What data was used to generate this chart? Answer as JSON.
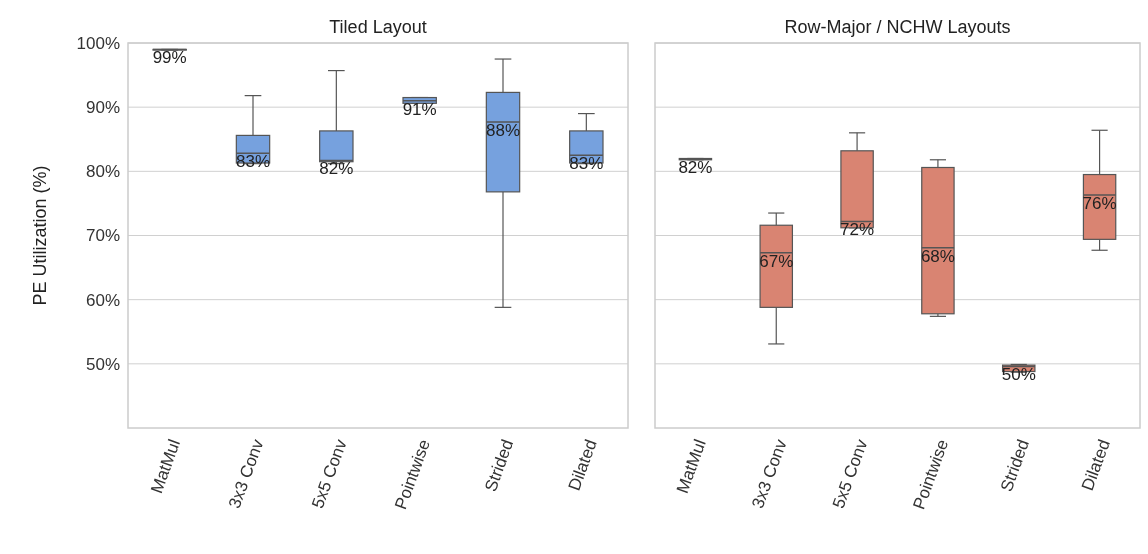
{
  "chart_data": [
    {
      "type": "box",
      "title": "Tiled Layout",
      "ylabel": "PE Utilization (%)",
      "categories": [
        "MatMul",
        "3x3 Conv",
        "5x5 Conv",
        "Pointwise",
        "Strided",
        "Dilated"
      ],
      "color": "#76a1de",
      "ylim": [
        40,
        100
      ],
      "yticks": [
        {
          "value": 50,
          "label": "50%"
        },
        {
          "value": 60,
          "label": "60%"
        },
        {
          "value": 70,
          "label": "70%"
        },
        {
          "value": 80,
          "label": "80%"
        },
        {
          "value": 90,
          "label": "90%"
        },
        {
          "value": 100,
          "label": "100%"
        }
      ],
      "grid": "y",
      "boxes": [
        {
          "low": 98.9,
          "q1": 98.9,
          "median": 99,
          "q3": 99,
          "high": 99
        },
        {
          "low": 81.2,
          "q1": 81.3,
          "median": 82.8,
          "q3": 85.6,
          "high": 91.8
        },
        {
          "low": 81.2,
          "q1": 81.5,
          "median": 81.7,
          "q3": 86.3,
          "high": 95.7
        },
        {
          "low": 90.6,
          "q1": 90.6,
          "median": 91,
          "q3": 91.5,
          "high": 91.5
        },
        {
          "low": 58.8,
          "q1": 76.8,
          "median": 87.7,
          "q3": 92.3,
          "high": 97.5
        },
        {
          "low": 81.2,
          "q1": 81.3,
          "median": 82.5,
          "q3": 86.3,
          "high": 89
        }
      ],
      "value_labels": [
        "99%",
        "83%",
        "82%",
        "91%",
        "88%",
        "83%"
      ]
    },
    {
      "type": "box",
      "title": "Row-Major / NCHW Layouts",
      "categories": [
        "MatMul",
        "3x3 Conv",
        "5x5 Conv",
        "Pointwise",
        "Strided",
        "Dilated"
      ],
      "color": "#d98472",
      "ylim": [
        40,
        100
      ],
      "yticks": [
        50,
        60,
        70,
        80,
        90,
        100
      ],
      "grid": "y",
      "tick_labels": "x",
      "boxes": [
        {
          "low": 81.8,
          "q1": 81.8,
          "median": 81.9,
          "q3": 82,
          "high": 82
        },
        {
          "low": 53.1,
          "q1": 58.8,
          "median": 67.3,
          "q3": 71.6,
          "high": 73.5
        },
        {
          "low": 71.2,
          "q1": 71.2,
          "median": 72.2,
          "q3": 83.2,
          "high": 86
        },
        {
          "low": 57.4,
          "q1": 57.8,
          "median": 68.1,
          "q3": 80.6,
          "high": 81.8
        },
        {
          "low": 48.7,
          "q1": 48.8,
          "median": 49.6,
          "q3": 49.8,
          "high": 49.9
        },
        {
          "low": 67.7,
          "q1": 69.4,
          "median": 76.3,
          "q3": 79.5,
          "high": 86.4
        }
      ],
      "value_labels": [
        "82%",
        "67%",
        "72%",
        "68%",
        "50%",
        "76%"
      ]
    }
  ]
}
